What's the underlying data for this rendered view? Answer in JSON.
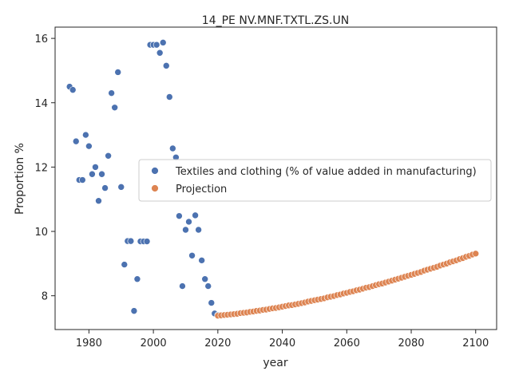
{
  "chart_data": {
    "type": "scatter",
    "title": "14_PE NV.MNF.TXTL.ZS.UN",
    "xlabel": "year",
    "ylabel": "Proportion %",
    "xlim": [
      1969.5,
      2106.5
    ],
    "ylim": [
      6.95,
      16.35
    ],
    "xticks": [
      1980,
      2000,
      2020,
      2040,
      2060,
      2080,
      2100
    ],
    "yticks": [
      8,
      10,
      12,
      14,
      16
    ],
    "grid": false,
    "legend_position": "center-right",
    "series": [
      {
        "name": "Textiles and clothing (% of value added in manufacturing)",
        "color": "#4c72b0",
        "points": [
          [
            1974,
            14.5
          ],
          [
            1975,
            14.4
          ],
          [
            1976,
            12.8
          ],
          [
            1977,
            11.6
          ],
          [
            1978,
            11.6
          ],
          [
            1979,
            13.0
          ],
          [
            1980,
            12.65
          ],
          [
            1981,
            11.78
          ],
          [
            1982,
            12.0
          ],
          [
            1983,
            10.95
          ],
          [
            1984,
            11.78
          ],
          [
            1985,
            11.35
          ],
          [
            1986,
            12.35
          ],
          [
            1987,
            14.3
          ],
          [
            1988,
            13.85
          ],
          [
            1989,
            14.95
          ],
          [
            1990,
            11.38
          ],
          [
            1991,
            8.97
          ],
          [
            1992,
            9.7
          ],
          [
            1993,
            9.7
          ],
          [
            1994,
            7.53
          ],
          [
            1995,
            8.52
          ],
          [
            1996,
            9.69
          ],
          [
            1997,
            9.69
          ],
          [
            1998,
            9.69
          ],
          [
            1999,
            15.8
          ],
          [
            2000,
            15.8
          ],
          [
            2001,
            15.8
          ],
          [
            2002,
            15.55
          ],
          [
            2003,
            15.87
          ],
          [
            2004,
            15.15
          ],
          [
            2005,
            14.18
          ],
          [
            2006,
            12.58
          ],
          [
            2007,
            12.3
          ],
          [
            2008,
            10.48
          ],
          [
            2009,
            8.3
          ],
          [
            2010,
            10.05
          ],
          [
            2011,
            10.3
          ],
          [
            2012,
            9.25
          ],
          [
            2013,
            10.5
          ],
          [
            2014,
            10.05
          ],
          [
            2015,
            9.1
          ],
          [
            2016,
            8.52
          ],
          [
            2017,
            8.3
          ],
          [
            2018,
            7.78
          ],
          [
            2019,
            7.45
          ],
          [
            2020,
            7.4
          ]
        ]
      },
      {
        "name": "Projection",
        "color": "#dd8452",
        "x_start": 2020,
        "values": [
          7.38,
          7.39,
          7.4,
          7.41,
          7.42,
          7.43,
          7.44,
          7.46,
          7.47,
          7.48,
          7.5,
          7.51,
          7.53,
          7.54,
          7.56,
          7.57,
          7.59,
          7.61,
          7.62,
          7.64,
          7.66,
          7.68,
          7.7,
          7.71,
          7.73,
          7.75,
          7.77,
          7.79,
          7.82,
          7.84,
          7.86,
          7.88,
          7.9,
          7.92,
          7.95,
          7.97,
          7.99,
          8.02,
          8.04,
          8.07,
          8.09,
          8.12,
          8.14,
          8.17,
          8.19,
          8.22,
          8.25,
          8.27,
          8.3,
          8.33,
          8.36,
          8.38,
          8.41,
          8.44,
          8.47,
          8.5,
          8.53,
          8.56,
          8.59,
          8.62,
          8.65,
          8.68,
          8.71,
          8.74,
          8.78,
          8.81,
          8.84,
          8.87,
          8.9,
          8.94,
          8.97,
          9.0,
          9.04,
          9.07,
          9.1,
          9.14,
          9.17,
          9.21,
          9.24,
          9.28,
          9.31
        ]
      }
    ]
  }
}
